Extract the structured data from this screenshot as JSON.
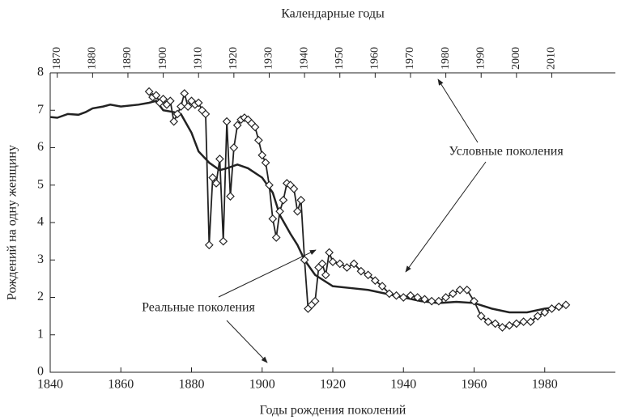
{
  "chart_data": {
    "type": "line",
    "top_axis_label": "Календарные годы",
    "xlabel": "Годы рождения поколений",
    "ylabel": "Рождений на одну женщину",
    "annotations": [
      "Условные поколения",
      "Реальные поколения"
    ],
    "xlim": [
      1840,
      2000
    ],
    "xticks": [
      1840,
      1860,
      1880,
      1900,
      1920,
      1940,
      1960,
      1980
    ],
    "x2lim": [
      1868,
      2028
    ],
    "x2ticks": [
      1870,
      1880,
      1890,
      1900,
      1910,
      1920,
      1930,
      1940,
      1950,
      1960,
      1970,
      1980,
      1990,
      2000,
      2010
    ],
    "ylim": [
      0,
      8
    ],
    "yticks": [
      0,
      1,
      2,
      3,
      4,
      5,
      6,
      7,
      8
    ],
    "series": [
      {
        "name": "Реальные поколения",
        "color": "#222222",
        "marker": "none",
        "x": [
          1840,
          1842,
          1845,
          1848,
          1850,
          1852,
          1855,
          1857,
          1860,
          1865,
          1868,
          1870,
          1872,
          1875,
          1877,
          1880,
          1882,
          1885,
          1888,
          1890,
          1893,
          1896,
          1900,
          1903,
          1905,
          1908,
          1910,
          1912,
          1915,
          1920,
          1925,
          1930,
          1935,
          1940,
          1945,
          1950,
          1955,
          1960,
          1965,
          1970,
          1975,
          1980,
          1985
        ],
        "values": [
          6.82,
          6.8,
          6.9,
          6.88,
          6.95,
          7.05,
          7.1,
          7.15,
          7.1,
          7.15,
          7.2,
          7.25,
          7.0,
          6.95,
          6.9,
          6.4,
          5.9,
          5.6,
          5.4,
          5.45,
          5.55,
          5.45,
          5.2,
          4.8,
          4.2,
          3.7,
          3.4,
          3.0,
          2.6,
          2.3,
          2.25,
          2.2,
          2.1,
          2.0,
          1.9,
          1.85,
          1.88,
          1.85,
          1.7,
          1.6,
          1.6,
          1.7,
          1.75
        ]
      },
      {
        "name": "Условные поколения",
        "color": "#222222",
        "marker": "diamond",
        "axis": "x2",
        "x": [
          1896,
          1897,
          1898,
          1899,
          1900,
          1901,
          1902,
          1903,
          1904,
          1905,
          1906,
          1907,
          1908,
          1909,
          1910,
          1911,
          1912,
          1913,
          1914,
          1915,
          1916,
          1917,
          1918,
          1919,
          1920,
          1921,
          1922,
          1923,
          1924,
          1925,
          1926,
          1927,
          1928,
          1929,
          1930,
          1931,
          1932,
          1933,
          1934,
          1935,
          1936,
          1937,
          1938,
          1939,
          1940,
          1941,
          1942,
          1943,
          1944,
          1945,
          1946,
          1947,
          1948,
          1950,
          1952,
          1954,
          1956,
          1958,
          1960,
          1962,
          1964,
          1966,
          1968,
          1970,
          1972,
          1974,
          1976,
          1978,
          1980,
          1982,
          1984,
          1986,
          1988,
          1990,
          1992,
          1994,
          1996,
          1998,
          2000,
          2002,
          2004,
          2006,
          2008,
          2010,
          2012,
          2014
        ],
        "values": [
          7.5,
          7.35,
          7.4,
          7.2,
          7.3,
          7.15,
          7.25,
          6.7,
          6.9,
          7.1,
          7.45,
          7.1,
          7.25,
          7.15,
          7.2,
          7.0,
          6.9,
          3.4,
          5.2,
          5.05,
          5.7,
          3.5,
          6.7,
          4.7,
          6.0,
          6.6,
          6.75,
          6.8,
          6.75,
          6.65,
          6.55,
          6.2,
          5.8,
          5.6,
          5.0,
          4.1,
          3.6,
          4.3,
          4.6,
          5.05,
          5.0,
          4.9,
          4.3,
          4.6,
          3.0,
          1.7,
          1.8,
          1.9,
          2.8,
          2.9,
          2.6,
          3.2,
          2.95,
          2.9,
          2.8,
          2.9,
          2.7,
          2.6,
          2.45,
          2.3,
          2.1,
          2.05,
          2.0,
          2.05,
          2.0,
          1.95,
          1.9,
          1.9,
          2.0,
          2.1,
          2.2,
          2.2,
          1.9,
          1.5,
          1.35,
          1.3,
          1.2,
          1.25,
          1.3,
          1.35,
          1.35,
          1.5,
          1.6,
          1.7,
          1.75,
          1.8
        ]
      }
    ]
  }
}
